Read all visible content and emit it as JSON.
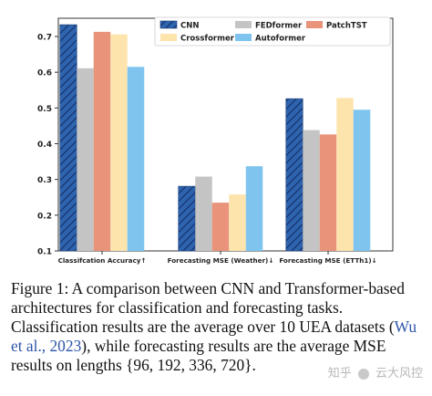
{
  "chart_data": {
    "type": "bar",
    "categories": [
      "Classifcation Accuracy↑",
      "Forecasting MSE (Weather)↓",
      "Forecasting MSE (ETTh1)↓"
    ],
    "series": [
      {
        "name": "CNN",
        "color": "#2e63ad",
        "hatched": true,
        "values": [
          0.733,
          0.281,
          0.526
        ]
      },
      {
        "name": "FEDformer",
        "color": "#c4c4c4",
        "hatched": false,
        "values": [
          0.611,
          0.308,
          0.438
        ]
      },
      {
        "name": "PatchTST",
        "color": "#e8937a",
        "hatched": false,
        "values": [
          0.713,
          0.235,
          0.426
        ]
      },
      {
        "name": "Crossformer",
        "color": "#fde4ad",
        "hatched": false,
        "values": [
          0.706,
          0.258,
          0.528
        ]
      },
      {
        "name": "Autoformer",
        "color": "#7fc4ef",
        "hatched": false,
        "values": [
          0.615,
          0.337,
          0.495
        ]
      }
    ],
    "ylim": [
      0.1,
      0.74
    ],
    "yticks": [
      "0.1",
      "0.2",
      "0.3",
      "0.4",
      "0.5",
      "0.6",
      "0.7"
    ],
    "legend_position": "top-right",
    "grid": false
  },
  "caption": {
    "part1": "Figure 1: A comparison between CNN and Transformer-based architectures for classification and forecasting tasks. Classification results are the average over 10 UEA datasets (",
    "citation": "Wu et al., 2023",
    "part2": "), while forecasting results are the average MSE results on lengths {96, 192, 336, 720}."
  },
  "watermark": {
    "text1": "知乎",
    "text2": "云大风控"
  }
}
